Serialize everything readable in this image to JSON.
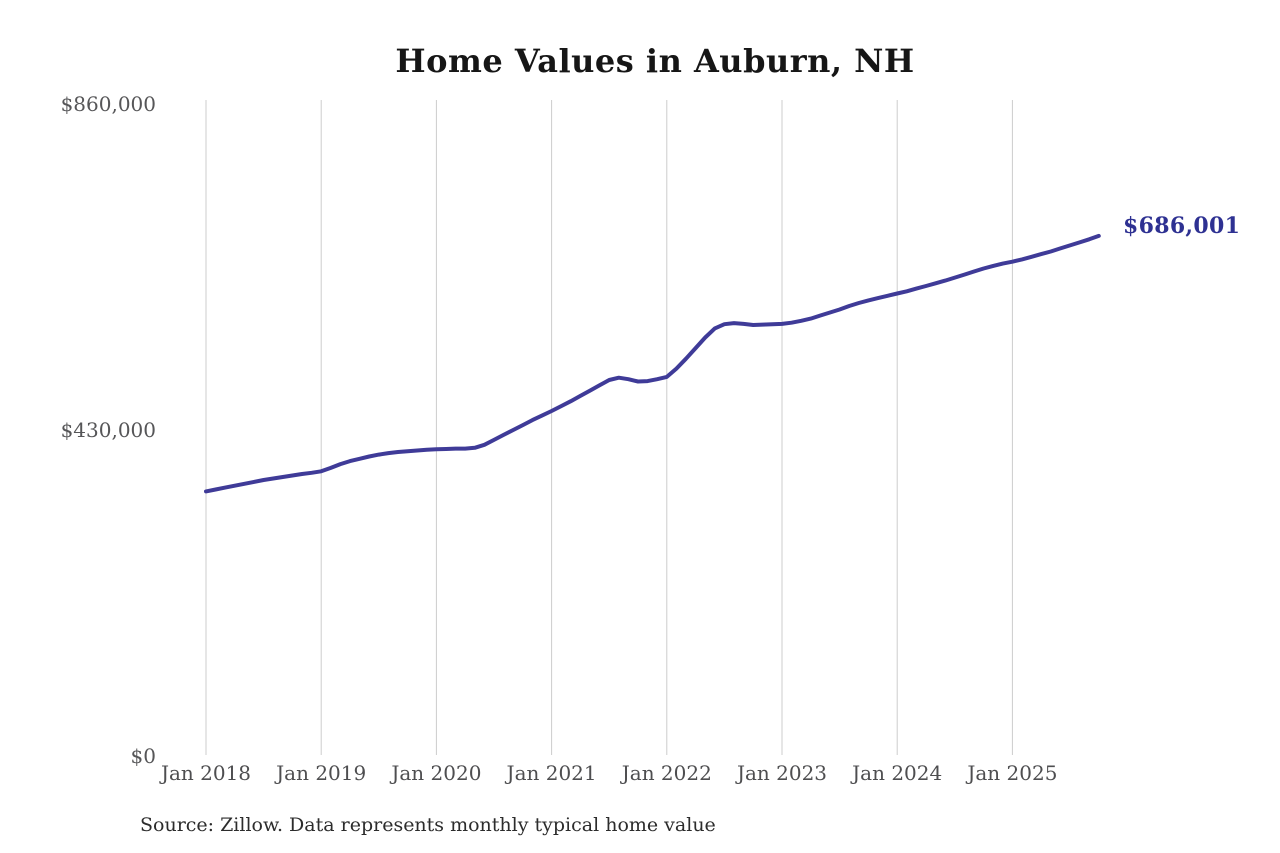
{
  "chart": {
    "title": "Home Values in Auburn, NH",
    "end_label": "$686,001",
    "source": "Source: Zillow. Data represents monthly typical home value"
  },
  "chart_data": {
    "type": "line",
    "title": "Home Values in Auburn, NH",
    "xlabel": "",
    "ylabel": "",
    "ylim": [
      0,
      860000
    ],
    "grid": "vertical-only",
    "legend": "none",
    "x_tick_labels": [
      "Jan 2018",
      "Jan 2019",
      "Jan 2020",
      "Jan 2021",
      "Jan 2022",
      "Jan 2023",
      "Jan 2024",
      "Jan 2025"
    ],
    "y_ticks": [
      {
        "label": "$0",
        "value": 0
      },
      {
        "label": "$430,000",
        "value": 430000
      },
      {
        "label": "$860,000",
        "value": 860000
      }
    ],
    "annotations": [
      {
        "text": "$686,001",
        "attach": "line-end"
      }
    ],
    "line_color": "#3f3b98",
    "label_color": "#2e3192",
    "grid_color": "#cccccc",
    "series": [
      {
        "name": "Monthly typical home value",
        "start_month": "2018-01",
        "end_month": "2025-10",
        "end_value": 686001,
        "values": [
          349000,
          351500,
          354000,
          356500,
          359000,
          361500,
          364000,
          366000,
          368000,
          370000,
          372000,
          373500,
          375500,
          380000,
          385000,
          389000,
          392000,
          395000,
          397500,
          399500,
          401000,
          402000,
          403000,
          404000,
          404500,
          405000,
          405500,
          405500,
          406500,
          410500,
          417000,
          423500,
          430000,
          436500,
          443000,
          449000,
          455000,
          461500,
          468000,
          475000,
          482000,
          489000,
          496000,
          499000,
          497000,
          494000,
          494500,
          497000,
          500000,
          511000,
          524000,
          538000,
          552000,
          564000,
          569500,
          571000,
          570000,
          568500,
          569000,
          569500,
          570000,
          571500,
          574000,
          577000,
          581000,
          585000,
          589000,
          593500,
          597500,
          601000,
          604000,
          607000,
          610000,
          613000,
          616500,
          620000,
          623500,
          627000,
          631000,
          635000,
          639000,
          643000,
          646500,
          649500,
          652000,
          655000,
          658500,
          662000,
          665500,
          669500,
          673500,
          677500,
          681500,
          686001
        ]
      }
    ]
  }
}
